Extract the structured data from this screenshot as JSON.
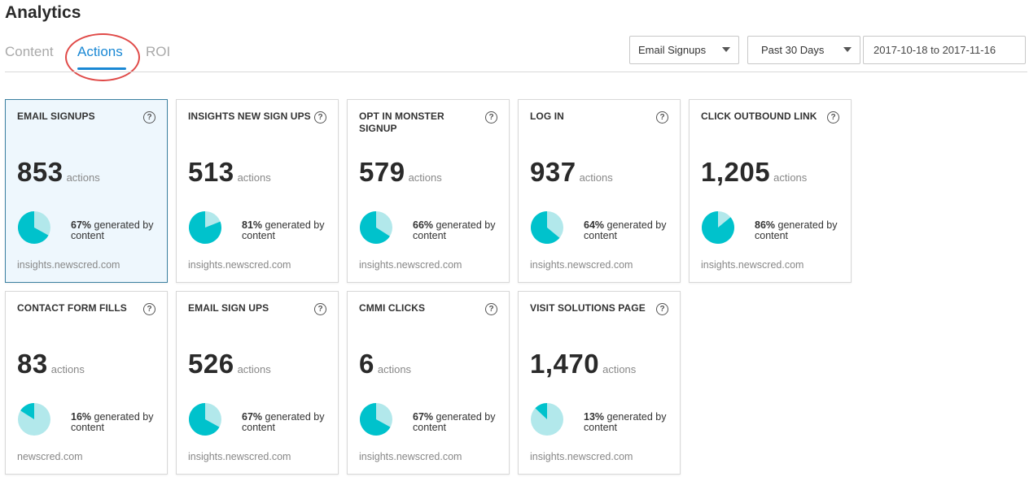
{
  "page": {
    "title": "Analytics"
  },
  "tabs": [
    {
      "label": "Content"
    },
    {
      "label": "Actions"
    },
    {
      "label": "ROI"
    }
  ],
  "filters": {
    "metric_select": "Email Signups",
    "range_select": "Past 30 Days",
    "date_range": "2017-10-18 to 2017-11-16"
  },
  "unit_label": "actions",
  "colors": {
    "accent": "#1a88d4",
    "pie_main": "#00c2cc",
    "pie_rest": "#b2e8eb",
    "highlight": "#e04a48"
  },
  "cards": [
    {
      "title": "EMAIL SIGNUPS",
      "value": "853",
      "percent": 67,
      "pct_label": "67%",
      "suffix": "generated by content",
      "domain": "insights.newscred.com"
    },
    {
      "title": "INSIGHTS NEW SIGN UPS",
      "value": "513",
      "percent": 81,
      "pct_label": "81%",
      "suffix": "generated by content",
      "domain": "insights.newscred.com"
    },
    {
      "title": "OPT IN MONSTER SIGNUP",
      "value": "579",
      "percent": 66,
      "pct_label": "66%",
      "suffix": "generated by content",
      "domain": "insights.newscred.com"
    },
    {
      "title": "LOG IN",
      "value": "937",
      "percent": 64,
      "pct_label": "64%",
      "suffix": "generated by content",
      "domain": "insights.newscred.com"
    },
    {
      "title": "CLICK OUTBOUND LINK",
      "value": "1,205",
      "percent": 86,
      "pct_label": "86%",
      "suffix": "generated by content",
      "domain": "insights.newscred.com"
    },
    {
      "title": "CONTACT FORM FILLS",
      "value": "83",
      "percent": 16,
      "pct_label": "16%",
      "suffix": "generated by content",
      "domain": "newscred.com"
    },
    {
      "title": "EMAIL SIGN UPS",
      "value": "526",
      "percent": 67,
      "pct_label": "67%",
      "suffix": "generated by content",
      "domain": "insights.newscred.com"
    },
    {
      "title": "CMMI CLICKS",
      "value": "6",
      "percent": 67,
      "pct_label": "67%",
      "suffix": "generated by content",
      "domain": "insights.newscred.com"
    },
    {
      "title": "VISIT SOLUTIONS PAGE",
      "value": "1,470",
      "percent": 13,
      "pct_label": "13%",
      "suffix": "generated by content",
      "domain": "insights.newscred.com"
    }
  ]
}
